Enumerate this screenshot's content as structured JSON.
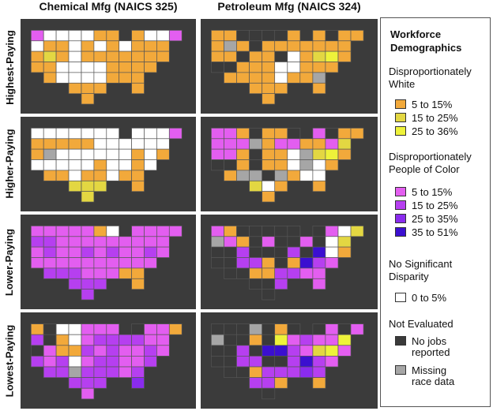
{
  "columns": [
    "Chemical Mfg (NAICS 325)",
    "Petroleum Mfg (NAICS 324)"
  ],
  "rows": [
    "Highest-Paying",
    "Higher-Paying",
    "Lower-Paying",
    "Lowest-Paying"
  ],
  "legend": {
    "title": "Workforce Demographics",
    "groups": [
      {
        "label": "Disproportionately White",
        "items": [
          {
            "label": "5 to 15%",
            "color": "#f2a93b"
          },
          {
            "label": "15 to 25%",
            "color": "#e3d742"
          },
          {
            "label": "25 to 36%",
            "color": "#eef23a"
          }
        ]
      },
      {
        "label": "Disproportionately People of Color",
        "items": [
          {
            "label": "5 to 15%",
            "color": "#e35ef0"
          },
          {
            "label": "15 to 25%",
            "color": "#b63ff0"
          },
          {
            "label": "25 to 35%",
            "color": "#8a2bee"
          },
          {
            "label": "35 to 51%",
            "color": "#3b0fd0"
          }
        ]
      },
      {
        "label": "No Significant Disparity",
        "items": [
          {
            "label": "0 to 5%",
            "color": "#ffffff"
          }
        ]
      },
      {
        "label": "Not Evaluated",
        "items": [
          {
            "label": "No jobs reported",
            "color": "#3a3a3a"
          },
          {
            "label": "Missing race data",
            "color": "#a6a6a6"
          }
        ]
      }
    ]
  },
  "map_colors": {
    "background": "#3d3d3d",
    "border": "#555555"
  }
}
